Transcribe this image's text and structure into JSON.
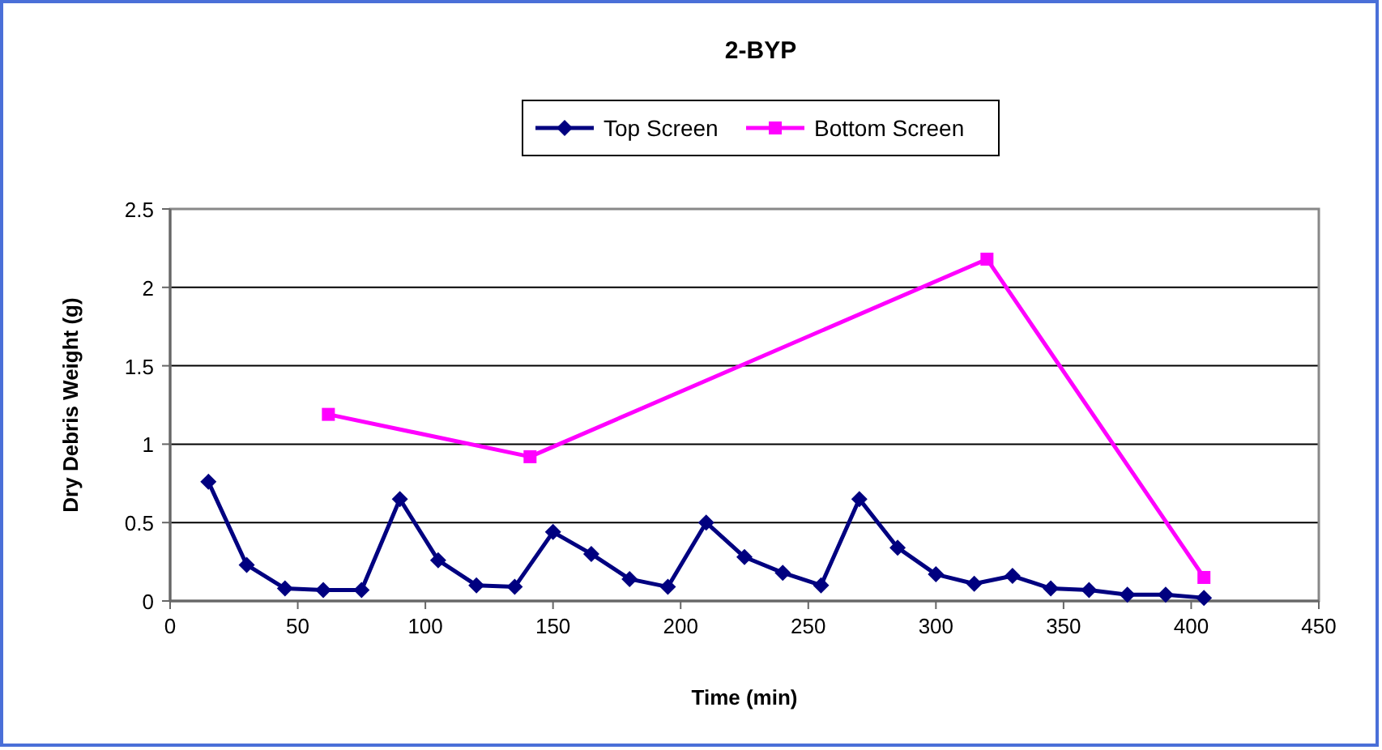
{
  "chart_data": {
    "type": "line",
    "title": "2-BYP",
    "xlabel": "Time (min)",
    "ylabel": "Dry Debris Weight (g)",
    "xlim": [
      0,
      450
    ],
    "xticks": [
      0,
      50,
      100,
      150,
      200,
      250,
      300,
      350,
      400,
      450
    ],
    "ylim": [
      0,
      2.5
    ],
    "yticks": [
      0,
      0.5,
      1,
      1.5,
      2,
      2.5
    ],
    "grid": "y",
    "legend": "top",
    "series": [
      {
        "name": "Top Screen",
        "color": "#000080",
        "marker": "diamond",
        "x": [
          15,
          30,
          45,
          60,
          75,
          90,
          105,
          120,
          135,
          150,
          165,
          180,
          195,
          210,
          225,
          240,
          255,
          270,
          285,
          300,
          315,
          330,
          345,
          360,
          375,
          390,
          405
        ],
        "values": [
          0.76,
          0.23,
          0.08,
          0.07,
          0.07,
          0.65,
          0.26,
          0.1,
          0.09,
          0.44,
          0.3,
          0.14,
          0.09,
          0.5,
          0.28,
          0.18,
          0.1,
          0.65,
          0.34,
          0.17,
          0.11,
          0.16,
          0.08,
          0.07,
          0.04,
          0.04,
          0.02
        ]
      },
      {
        "name": "Bottom Screen",
        "color": "#ff00ff",
        "marker": "square",
        "x": [
          62,
          141,
          320,
          405
        ],
        "values": [
          1.19,
          0.92,
          2.18,
          0.15
        ]
      }
    ]
  }
}
